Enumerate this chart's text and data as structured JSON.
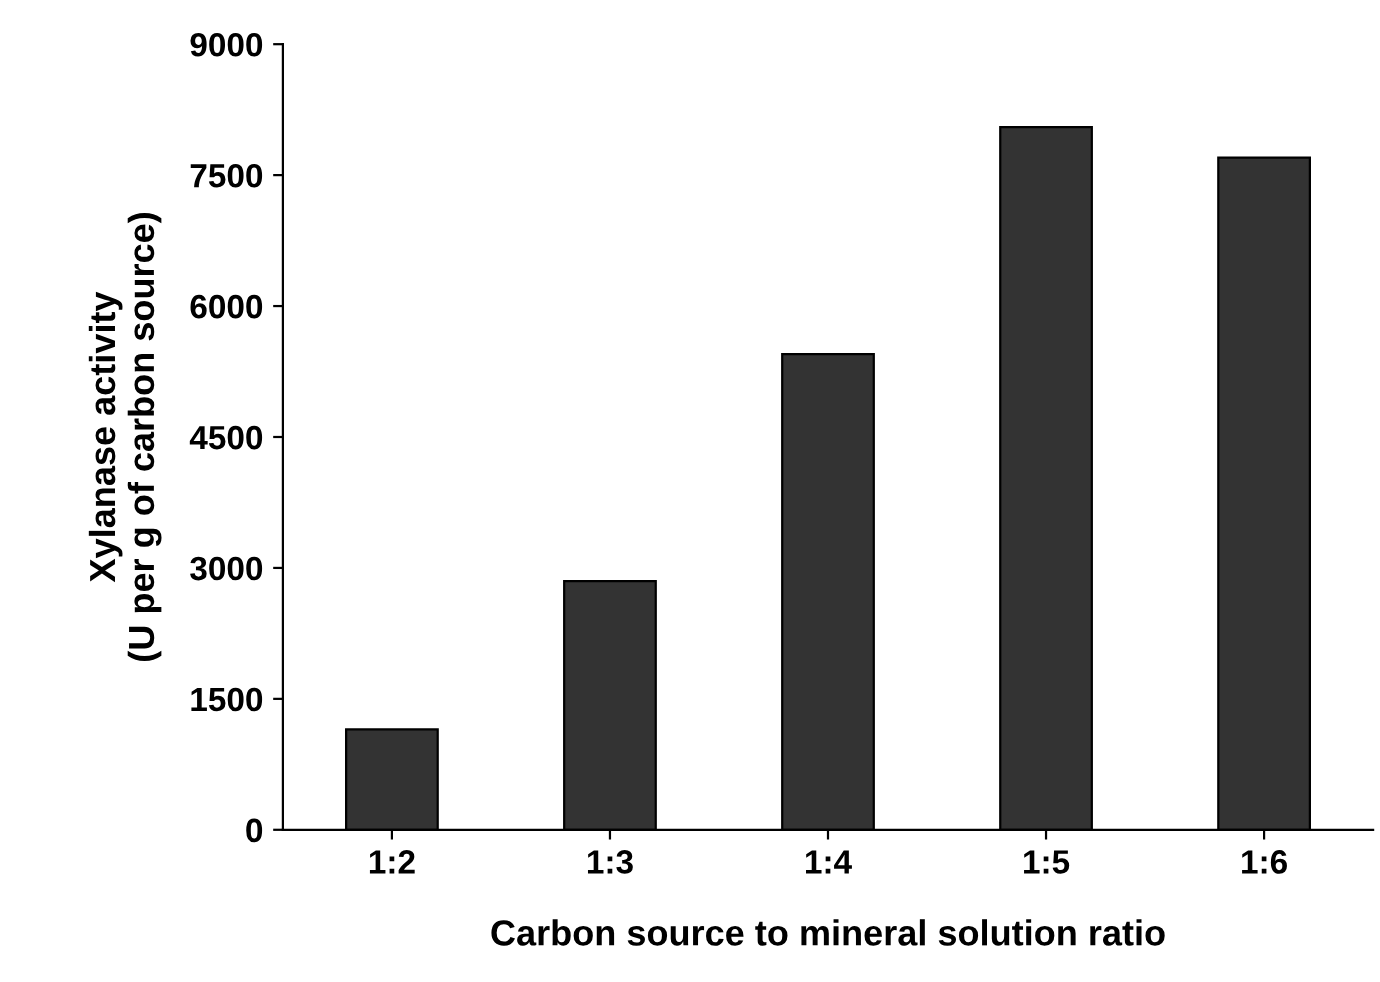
{
  "chart_data": {
    "type": "bar",
    "xlabel": "Carbon source to mineral solution ratio",
    "ylabel": "Xylanase activity\n(U per g of carbon source)",
    "categories": [
      "1:2",
      "1:3",
      "1:4",
      "1:5",
      "1:6"
    ],
    "values": [
      1150,
      2850,
      5450,
      8050,
      7700
    ],
    "color": "#333333",
    "ylim": [
      0,
      9000
    ],
    "yticks": [
      0,
      1500,
      3000,
      4500,
      6000,
      7500,
      9000
    ],
    "grid": false
  }
}
